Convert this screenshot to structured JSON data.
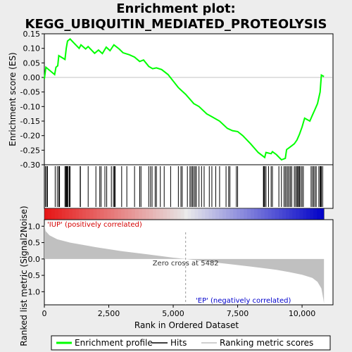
{
  "chart_data": {
    "type": "line",
    "title_line1": "Enrichment plot:",
    "title_line2": "KEGG_UBIQUITIN_MEDIATED_PROTEOLYSIS",
    "top_panel": {
      "ylabel": "Enrichment score (ES)",
      "ylim": [
        -0.3,
        0.15
      ],
      "yticks": [
        "0.15",
        "0.10",
        "0.05",
        "0.00",
        "-0.05",
        "-0.10",
        "-0.15",
        "-0.20",
        "-0.25",
        "-0.30"
      ],
      "ytick_values": [
        0.15,
        0.1,
        0.05,
        0.0,
        -0.05,
        -0.1,
        -0.15,
        -0.2,
        -0.25,
        -0.3
      ],
      "series_color": "#00ff00",
      "es_points": [
        [
          0,
          -0.005
        ],
        [
          60,
          0.035
        ],
        [
          400,
          0.01
        ],
        [
          450,
          0.035
        ],
        [
          520,
          0.04
        ],
        [
          560,
          0.075
        ],
        [
          800,
          0.062
        ],
        [
          850,
          0.1
        ],
        [
          900,
          0.125
        ],
        [
          1000,
          0.132
        ],
        [
          1150,
          0.118
        ],
        [
          1350,
          0.1
        ],
        [
          1420,
          0.112
        ],
        [
          1600,
          0.098
        ],
        [
          1700,
          0.106
        ],
        [
          1950,
          0.083
        ],
        [
          2100,
          0.094
        ],
        [
          2250,
          0.082
        ],
        [
          2400,
          0.104
        ],
        [
          2550,
          0.092
        ],
        [
          2700,
          0.112
        ],
        [
          2900,
          0.098
        ],
        [
          3050,
          0.085
        ],
        [
          3300,
          0.078
        ],
        [
          3500,
          0.07
        ],
        [
          3700,
          0.055
        ],
        [
          3850,
          0.06
        ],
        [
          4050,
          0.038
        ],
        [
          4200,
          0.03
        ],
        [
          4350,
          0.033
        ],
        [
          4550,
          0.027
        ],
        [
          4800,
          0.01
        ],
        [
          5200,
          -0.035
        ],
        [
          5482,
          -0.058
        ],
        [
          5800,
          -0.09
        ],
        [
          6000,
          -0.1
        ],
        [
          6300,
          -0.125
        ],
        [
          6500,
          -0.135
        ],
        [
          6800,
          -0.15
        ],
        [
          7100,
          -0.175
        ],
        [
          7300,
          -0.183
        ],
        [
          7500,
          -0.186
        ],
        [
          7700,
          -0.2
        ],
        [
          8000,
          -0.228
        ],
        [
          8300,
          -0.258
        ],
        [
          8550,
          -0.275
        ],
        [
          8600,
          -0.258
        ],
        [
          8800,
          -0.262
        ],
        [
          8850,
          -0.255
        ],
        [
          9000,
          -0.265
        ],
        [
          9200,
          -0.283
        ],
        [
          9350,
          -0.278
        ],
        [
          9400,
          -0.248
        ],
        [
          9550,
          -0.238
        ],
        [
          9700,
          -0.228
        ],
        [
          9800,
          -0.215
        ],
        [
          9900,
          -0.195
        ],
        [
          10000,
          -0.17
        ],
        [
          10100,
          -0.14
        ],
        [
          10300,
          -0.15
        ],
        [
          10400,
          -0.13
        ],
        [
          10500,
          -0.11
        ],
        [
          10600,
          -0.09
        ],
        [
          10700,
          -0.05
        ],
        [
          10750,
          0.008
        ],
        [
          10850,
          0.003
        ]
      ]
    },
    "hits": [
      40,
      90,
      120,
      420,
      500,
      560,
      590,
      800,
      830,
      860,
      890,
      920,
      970,
      1000,
      1390,
      1400,
      1700,
      2000,
      2150,
      2200,
      2350,
      2420,
      2600,
      2680,
      2720,
      2750,
      3000,
      3200,
      3500,
      3700,
      3750,
      4050,
      4120,
      4180,
      4300,
      4350,
      4500,
      4650,
      4900,
      5200,
      5300,
      5350,
      5550,
      5650,
      5700,
      5750,
      5800,
      5850,
      5900,
      6000,
      6100,
      6200,
      6400,
      6500,
      6650,
      6800,
      7050,
      7150,
      7200,
      7450,
      7500,
      8500,
      8520,
      8550,
      8600,
      8700,
      8800,
      8850,
      9100,
      9200,
      9300,
      9350,
      9400,
      9450,
      9500,
      9550,
      9600,
      9700,
      9750,
      9800,
      9830,
      9870,
      9900,
      9950,
      10000,
      10050,
      10350,
      10400,
      10450,
      10500,
      10550,
      10650,
      10700,
      10720,
      10750,
      10800
    ],
    "bottom_panel": {
      "ylabel": "Ranked list metric (Signal2Noise)",
      "ylim": [
        -1.4,
        1.2
      ],
      "yticks": [
        "1.0",
        "0.5",
        "0.0",
        "-0.5",
        "-1.0"
      ],
      "ytick_values": [
        1.0,
        0.5,
        0.0,
        -0.5,
        -1.0
      ],
      "metric_profile": [
        [
          0,
          1.05
        ],
        [
          50,
          0.85
        ],
        [
          200,
          0.72
        ],
        [
          500,
          0.6
        ],
        [
          1000,
          0.5
        ],
        [
          2000,
          0.36
        ],
        [
          3000,
          0.24
        ],
        [
          4000,
          0.14
        ],
        [
          5000,
          0.04
        ],
        [
          5482,
          0.0
        ],
        [
          6000,
          -0.05
        ],
        [
          7000,
          -0.14
        ],
        [
          8000,
          -0.23
        ],
        [
          9000,
          -0.33
        ],
        [
          9500,
          -0.4
        ],
        [
          10000,
          -0.48
        ],
        [
          10400,
          -0.58
        ],
        [
          10600,
          -0.7
        ],
        [
          10750,
          -0.9
        ],
        [
          10820,
          -1.2
        ],
        [
          10850,
          -1.35
        ]
      ],
      "pos_label": "'IUP' (positively correlated)",
      "neg_label": "'EP' (negatively correlated)",
      "pos_color": "#d40000",
      "neg_color": "#0000cc",
      "zero_cross_label": "Zero cross at 5482",
      "zero_cross": 5482
    },
    "xlabel": "Rank in Ordered Dataset",
    "xlim": [
      0,
      11200
    ],
    "xticks": [
      "0",
      "2,500",
      "5,000",
      "7,500",
      "10,000"
    ],
    "xtick_values": [
      0,
      2500,
      5000,
      7500,
      10000
    ],
    "dataset_size": 10850,
    "legend": [
      {
        "label": "Enrichment profile",
        "color": "#00ff00"
      },
      {
        "label": "Hits",
        "color": "#000000"
      },
      {
        "label": "Ranking metric scores",
        "color": "#c0c0c0"
      }
    ]
  }
}
